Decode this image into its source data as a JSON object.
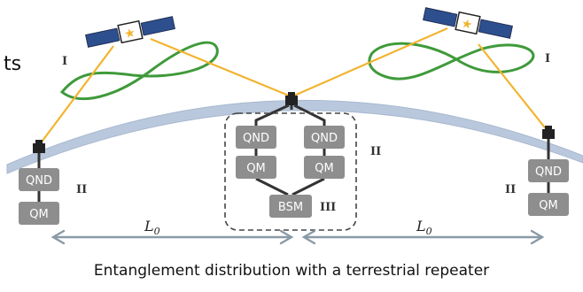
{
  "caption": "Entanglement distribution with a terrestrial repeater",
  "cut_text": "ts",
  "labels": {
    "qnd": "QND",
    "qm": "QM",
    "bsm": "BSM",
    "stage_1": "I",
    "stage_2": "II",
    "stage_3": "III",
    "distance": "L",
    "distance_sub": "0"
  },
  "colors": {
    "earth": "#b9c8dc",
    "link": "#f2b430",
    "orbit": "#3f9a3a",
    "box": "#8e8e8e",
    "arrow": "#8a9aa6",
    "panel": "#2e4f8e"
  }
}
